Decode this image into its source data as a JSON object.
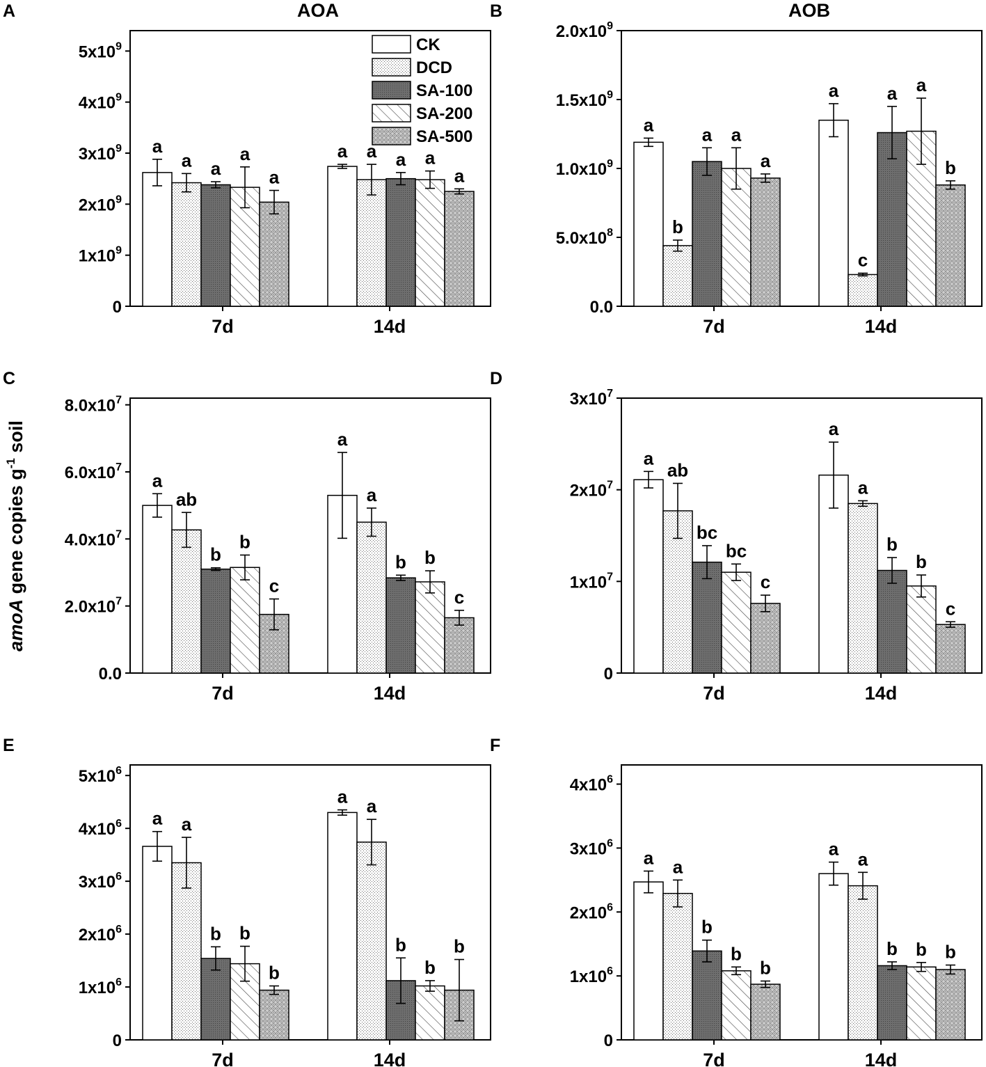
{
  "figure": {
    "ylabel": {
      "italic": "amoA",
      "main": " gene copies g",
      "sup": "-1",
      "tail": " soil"
    },
    "legend": [
      "CK",
      "DCD",
      "SA-100",
      "SA-200",
      "SA-500"
    ],
    "colors": {
      "bar_fill_ck": "#ffffff",
      "bar_fill_sa100": "#6e6e6e",
      "stroke": "#000000"
    }
  },
  "chart_data": [
    {
      "type": "bar",
      "panel": "A",
      "title": "AOA",
      "categories": [
        "7d",
        "14d"
      ],
      "ylim": [
        0,
        5400000000.0
      ],
      "yticks": [
        {
          "v": 0,
          "m": "0",
          "e": ""
        },
        {
          "v": 1000000000.0,
          "m": "1x10",
          "e": "9"
        },
        {
          "v": 2000000000.0,
          "m": "2x10",
          "e": "9"
        },
        {
          "v": 3000000000.0,
          "m": "3x10",
          "e": "9"
        },
        {
          "v": 4000000000.0,
          "m": "4x10",
          "e": "9"
        },
        {
          "v": 5000000000.0,
          "m": "5x10",
          "e": "9"
        }
      ],
      "series": [
        {
          "name": "CK",
          "values": [
            2620000000.0,
            2740000000.0
          ],
          "errors": [
            260000000.0,
            40000000.0
          ],
          "letters": [
            "a",
            "a"
          ]
        },
        {
          "name": "DCD",
          "values": [
            2420000000.0,
            2480000000.0
          ],
          "errors": [
            180000000.0,
            300000000.0
          ],
          "letters": [
            "a",
            "a"
          ]
        },
        {
          "name": "SA-100",
          "values": [
            2380000000.0,
            2500000000.0
          ],
          "errors": [
            60000000.0,
            120000000.0
          ],
          "letters": [
            "a",
            "a"
          ]
        },
        {
          "name": "SA-200",
          "values": [
            2330000000.0,
            2480000000.0
          ],
          "errors": [
            400000000.0,
            170000000.0
          ],
          "letters": [
            "a",
            "a"
          ]
        },
        {
          "name": "SA-500",
          "values": [
            2040000000.0,
            2250000000.0
          ],
          "errors": [
            230000000.0,
            50000000.0
          ],
          "letters": [
            "a",
            "a"
          ]
        }
      ]
    },
    {
      "type": "bar",
      "panel": "B",
      "title": "AOB",
      "categories": [
        "7d",
        "14d"
      ],
      "ylim": [
        0,
        2000000000.0
      ],
      "yticks": [
        {
          "v": 0,
          "m": "0.0",
          "e": ""
        },
        {
          "v": 500000000.0,
          "m": "5.0x10",
          "e": "8"
        },
        {
          "v": 1000000000.0,
          "m": "1.0x10",
          "e": "9"
        },
        {
          "v": 1500000000.0,
          "m": "1.5x10",
          "e": "9"
        },
        {
          "v": 2000000000.0,
          "m": "2.0x10",
          "e": "9"
        }
      ],
      "series": [
        {
          "name": "CK",
          "values": [
            1190000000.0,
            1350000000.0
          ],
          "errors": [
            30000000.0,
            120000000.0
          ],
          "letters": [
            "a",
            "a"
          ]
        },
        {
          "name": "DCD",
          "values": [
            440000000.0,
            230000000.0
          ],
          "errors": [
            40000000.0,
            10000000.0
          ],
          "letters": [
            "b",
            "c"
          ]
        },
        {
          "name": "SA-100",
          "values": [
            1050000000.0,
            1260000000.0
          ],
          "errors": [
            100000000.0,
            190000000.0
          ],
          "letters": [
            "a",
            "a"
          ]
        },
        {
          "name": "SA-200",
          "values": [
            1000000000.0,
            1270000000.0
          ],
          "errors": [
            150000000.0,
            240000000.0
          ],
          "letters": [
            "a",
            "a"
          ]
        },
        {
          "name": "SA-500",
          "values": [
            930000000.0,
            880000000.0
          ],
          "errors": [
            30000000.0,
            30000000.0
          ],
          "letters": [
            "a",
            "b"
          ]
        }
      ]
    },
    {
      "type": "bar",
      "panel": "C",
      "title": "",
      "categories": [
        "7d",
        "14d"
      ],
      "ylim": [
        0,
        82000000.0
      ],
      "yticks": [
        {
          "v": 0,
          "m": "0.0",
          "e": ""
        },
        {
          "v": 20000000.0,
          "m": "2.0x10",
          "e": "7"
        },
        {
          "v": 40000000.0,
          "m": "4.0x10",
          "e": "7"
        },
        {
          "v": 60000000.0,
          "m": "6.0x10",
          "e": "7"
        },
        {
          "v": 80000000.0,
          "m": "8.0x10",
          "e": "7"
        }
      ],
      "series": [
        {
          "name": "CK",
          "values": [
            50000000.0,
            53000000.0
          ],
          "errors": [
            3500000.0,
            12800000.0
          ],
          "letters": [
            "a",
            "a"
          ]
        },
        {
          "name": "DCD",
          "values": [
            42700000.0,
            45000000.0
          ],
          "errors": [
            5200000.0,
            4200000.0
          ],
          "letters": [
            "ab",
            "a"
          ]
        },
        {
          "name": "SA-100",
          "values": [
            31000000.0,
            28400000.0
          ],
          "errors": [
            400000.0,
            800000.0
          ],
          "letters": [
            "b",
            "b"
          ]
        },
        {
          "name": "SA-200",
          "values": [
            31500000.0,
            27200000.0
          ],
          "errors": [
            3700000.0,
            3300000.0
          ],
          "letters": [
            "b",
            "b"
          ]
        },
        {
          "name": "SA-500",
          "values": [
            17500000.0,
            16500000.0
          ],
          "errors": [
            4600000.0,
            2200000.0
          ],
          "letters": [
            "c",
            "c"
          ]
        }
      ]
    },
    {
      "type": "bar",
      "panel": "D",
      "title": "",
      "categories": [
        "7d",
        "14d"
      ],
      "ylim": [
        0,
        30000000.0
      ],
      "yticks": [
        {
          "v": 0,
          "m": "0",
          "e": ""
        },
        {
          "v": 10000000.0,
          "m": "1x10",
          "e": "7"
        },
        {
          "v": 20000000.0,
          "m": "2x10",
          "e": "7"
        },
        {
          "v": 30000000.0,
          "m": "3x10",
          "e": "7"
        }
      ],
      "series": [
        {
          "name": "CK",
          "values": [
            21100000.0,
            21600000.0
          ],
          "errors": [
            900000.0,
            3600000.0
          ],
          "letters": [
            "a",
            "a"
          ]
        },
        {
          "name": "DCD",
          "values": [
            17700000.0,
            18500000.0
          ],
          "errors": [
            3000000.0,
            300000.0
          ],
          "letters": [
            "ab",
            "a"
          ]
        },
        {
          "name": "SA-100",
          "values": [
            12100000.0,
            11200000.0
          ],
          "errors": [
            1800000.0,
            1400000.0
          ],
          "letters": [
            "bc",
            "b"
          ]
        },
        {
          "name": "SA-200",
          "values": [
            11000000.0,
            9500000.0
          ],
          "errors": [
            900000.0,
            1200000.0
          ],
          "letters": [
            "bc",
            "b"
          ]
        },
        {
          "name": "SA-500",
          "values": [
            7600000.0,
            5300000.0
          ],
          "errors": [
            900000.0,
            300000.0
          ],
          "letters": [
            "c",
            "c"
          ]
        }
      ]
    },
    {
      "type": "bar",
      "panel": "E",
      "title": "",
      "categories": [
        "7d",
        "14d"
      ],
      "ylim": [
        0,
        5200000.0
      ],
      "yticks": [
        {
          "v": 0,
          "m": "0",
          "e": ""
        },
        {
          "v": 1000000.0,
          "m": "1x10",
          "e": "6"
        },
        {
          "v": 2000000.0,
          "m": "2x10",
          "e": "6"
        },
        {
          "v": 3000000.0,
          "m": "3x10",
          "e": "6"
        },
        {
          "v": 4000000.0,
          "m": "4x10",
          "e": "6"
        },
        {
          "v": 5000000.0,
          "m": "5x10",
          "e": "6"
        }
      ],
      "series": [
        {
          "name": "CK",
          "values": [
            3660000.0,
            4300000.0
          ],
          "errors": [
            280000.0,
            50000.0
          ],
          "letters": [
            "a",
            "a"
          ]
        },
        {
          "name": "DCD",
          "values": [
            3350000.0,
            3740000.0
          ],
          "errors": [
            480000.0,
            430000.0
          ],
          "letters": [
            "a",
            "a"
          ]
        },
        {
          "name": "SA-100",
          "values": [
            1540000.0,
            1120000.0
          ],
          "errors": [
            220000.0,
            430000.0
          ],
          "letters": [
            "b",
            "b"
          ]
        },
        {
          "name": "SA-200",
          "values": [
            1440000.0,
            1020000.0
          ],
          "errors": [
            330000.0,
            100000.0
          ],
          "letters": [
            "b",
            "b"
          ]
        },
        {
          "name": "SA-500",
          "values": [
            940000.0,
            940000.0
          ],
          "errors": [
            80000.0,
            580000.0
          ],
          "letters": [
            "b",
            "b"
          ]
        }
      ]
    },
    {
      "type": "bar",
      "panel": "F",
      "title": "",
      "categories": [
        "7d",
        "14d"
      ],
      "ylim": [
        0,
        4300000.0
      ],
      "yticks": [
        {
          "v": 0,
          "m": "0",
          "e": ""
        },
        {
          "v": 1000000.0,
          "m": "1x10",
          "e": "6"
        },
        {
          "v": 2000000.0,
          "m": "2x10",
          "e": "6"
        },
        {
          "v": 3000000.0,
          "m": "3x10",
          "e": "6"
        },
        {
          "v": 4000000.0,
          "m": "4x10",
          "e": "6"
        }
      ],
      "series": [
        {
          "name": "CK",
          "values": [
            2470000.0,
            2600000.0
          ],
          "errors": [
            170000.0,
            180000.0
          ],
          "letters": [
            "a",
            "a"
          ]
        },
        {
          "name": "DCD",
          "values": [
            2290000.0,
            2410000.0
          ],
          "errors": [
            210000.0,
            210000.0
          ],
          "letters": [
            "a",
            "a"
          ]
        },
        {
          "name": "SA-100",
          "values": [
            1390000.0,
            1160000.0
          ],
          "errors": [
            170000.0,
            60000.0
          ],
          "letters": [
            "b",
            "b"
          ]
        },
        {
          "name": "SA-200",
          "values": [
            1080000.0,
            1140000.0
          ],
          "errors": [
            60000.0,
            70000.0
          ],
          "letters": [
            "b",
            "b"
          ]
        },
        {
          "name": "SA-500",
          "values": [
            870000.0,
            1100000.0
          ],
          "errors": [
            50000.0,
            70000.0
          ],
          "letters": [
            "b",
            "b"
          ]
        }
      ]
    }
  ]
}
